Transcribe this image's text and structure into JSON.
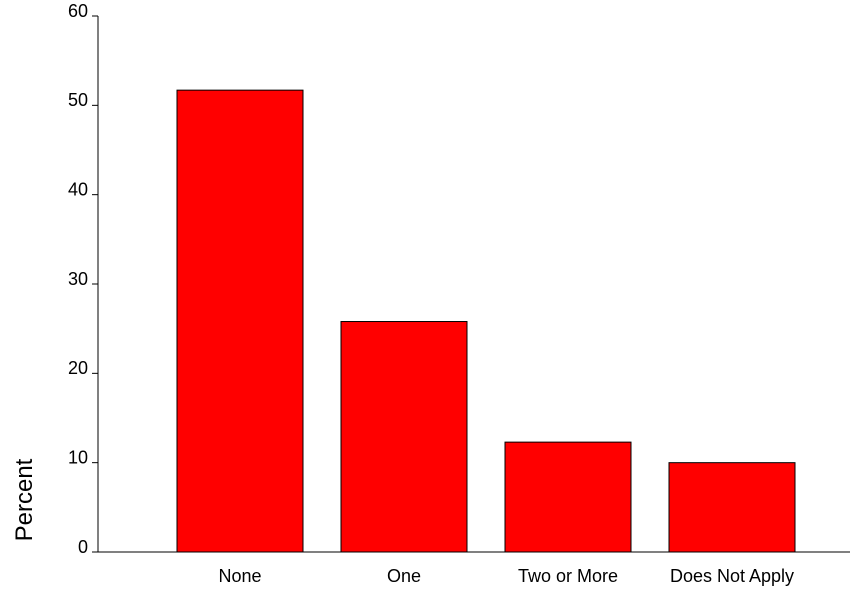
{
  "chart_data": {
    "type": "bar",
    "categories": [
      "None",
      "One",
      "Two or More",
      "Does Not Apply"
    ],
    "values": [
      51.7,
      25.8,
      12.3,
      10.0
    ],
    "title": "",
    "xlabel": "",
    "ylabel": "Percent",
    "ylim": [
      0,
      60
    ],
    "yticks": [
      0,
      10,
      20,
      30,
      40,
      50,
      60
    ],
    "grid": false,
    "legend": "none",
    "bar_color": "#ff0000",
    "bar_edge_color": "#000000"
  }
}
